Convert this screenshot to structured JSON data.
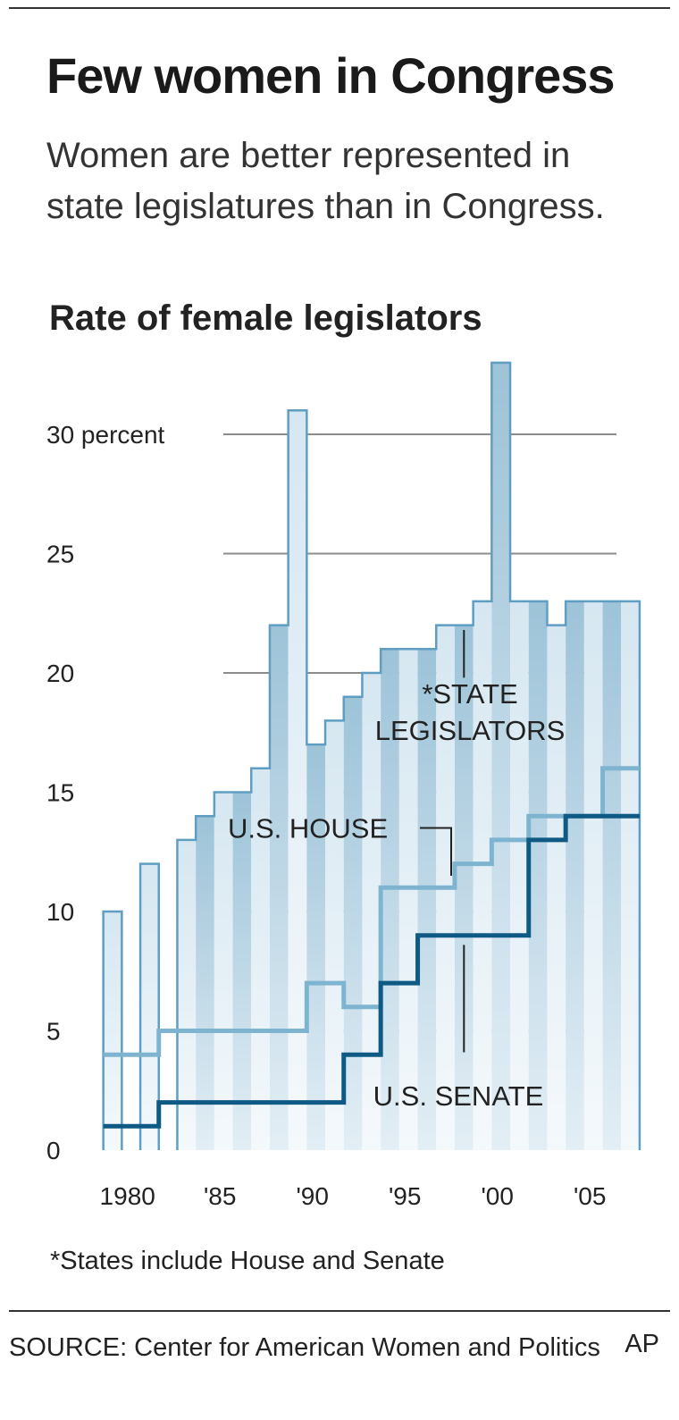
{
  "header": {
    "title": "Few women in Congress",
    "subtitle": "Women are better represented in state legislatures than in Congress."
  },
  "footnote": "*States include House and Senate",
  "source": "SOURCE: Center for American Women and Politics",
  "credit": "AP",
  "colors": {
    "state_bar_light": "#d6e7f1",
    "state_bar_dark": "#9dc3d8",
    "state_outline": "#5f9ec3",
    "house_line": "#7fb4d0",
    "senate_line": "#0f5a84",
    "gridline": "#8c8c8c"
  },
  "chart_data": {
    "type": "bar",
    "title": "Rate of female legislators",
    "x": [
      1979,
      1980,
      1981,
      1982,
      1983,
      1984,
      1985,
      1986,
      1987,
      1988,
      1989,
      1990,
      1991,
      1992,
      1993,
      1994,
      1995,
      1996,
      1997,
      1998,
      1999,
      2000,
      2001,
      2002,
      2003,
      2004,
      2005,
      2006,
      2007
    ],
    "x_tick_labels": [
      {
        "x": 1980,
        "label": "1980"
      },
      {
        "x": 1985,
        "label": "'85"
      },
      {
        "x": 1990,
        "label": "'90"
      },
      {
        "x": 1995,
        "label": "'95"
      },
      {
        "x": 2000,
        "label": "'00"
      },
      {
        "x": 2005,
        "label": "'05"
      }
    ],
    "y_ticks": [
      0,
      5,
      10,
      15,
      20,
      25,
      30
    ],
    "y_tick_labels": [
      "0",
      "5",
      "10",
      "15",
      "20",
      "25",
      "30 percent"
    ],
    "ylim": [
      0,
      35
    ],
    "grid": true,
    "series": [
      {
        "name": "*STATE LEGISLATORS",
        "style": "bars",
        "values": [
          10,
          null,
          12,
          null,
          13,
          14,
          15,
          15,
          16,
          22,
          31,
          17,
          18,
          19,
          20,
          21,
          21,
          21,
          22,
          22,
          23,
          33,
          23,
          23,
          22,
          23,
          23,
          23,
          23
        ]
      },
      {
        "name": "U.S. HOUSE",
        "style": "step",
        "values": [
          4,
          4,
          4,
          5,
          5,
          5,
          5,
          5,
          5,
          5,
          5,
          7,
          7,
          6,
          6,
          11,
          11,
          11,
          11,
          12,
          12,
          13,
          13,
          14,
          14,
          14,
          14,
          16,
          16
        ]
      },
      {
        "name": "U.S. SENATE",
        "style": "step",
        "values": [
          1,
          1,
          1,
          2,
          2,
          2,
          2,
          2,
          2,
          2,
          2,
          2,
          2,
          4,
          4,
          7,
          7,
          9,
          9,
          9,
          9,
          9,
          9,
          13,
          13,
          14,
          14,
          14,
          14
        ]
      }
    ],
    "annotations": [
      {
        "series": "*STATE LEGISLATORS",
        "lines": [
          "*STATE",
          "LEGISLATORS"
        ]
      },
      {
        "series": "U.S. HOUSE",
        "lines": [
          "U.S. HOUSE"
        ]
      },
      {
        "series": "U.S. SENATE",
        "lines": [
          "U.S. SENATE"
        ]
      }
    ]
  }
}
